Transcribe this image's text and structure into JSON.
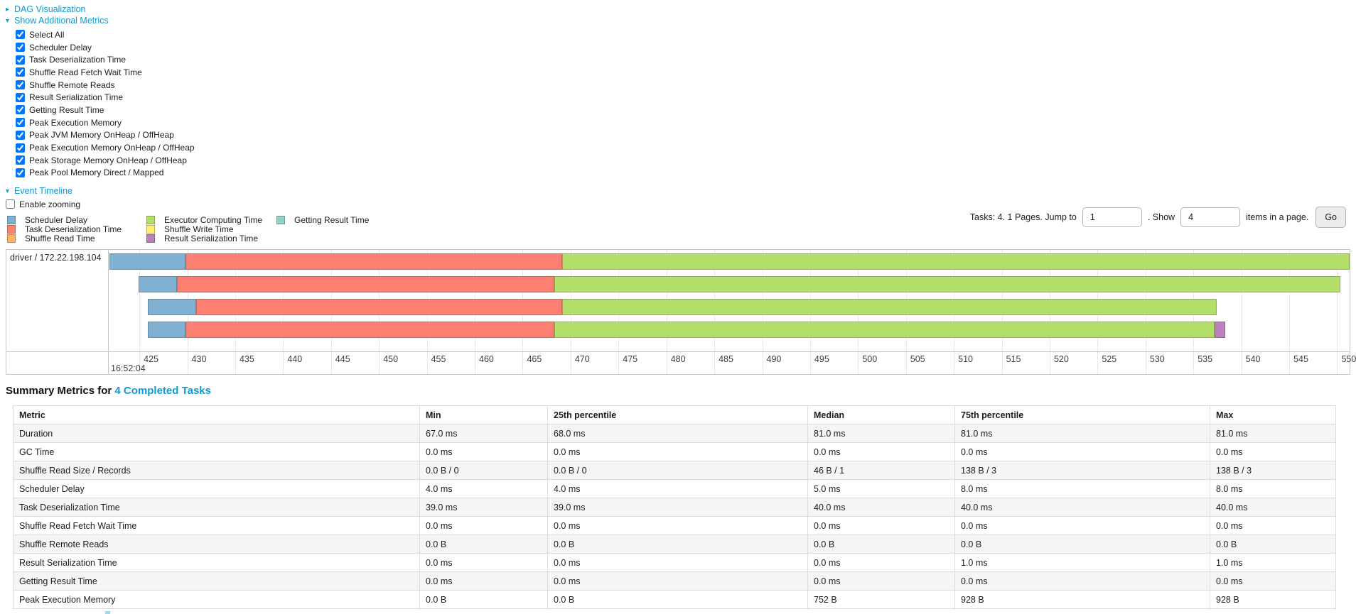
{
  "colors": {
    "link": "#0d9ad6",
    "segment_colors": {
      "scheduler_delay": "#80B1D3",
      "task_deserialization": "#FB8072",
      "shuffle_read": "#FDB462",
      "executor_computing": "#B3DE69",
      "shuffle_write": "#FFED6F",
      "result_serialization": "#BC80BD",
      "getting_result": "#8DD3C7"
    }
  },
  "sections": {
    "dag_arrow": "▸",
    "dag_label": "DAG Visualization",
    "metrics_arrow": "▾",
    "metrics_label": "Show Additional Metrics",
    "timeline_arrow": "▾",
    "timeline_label": "Event Timeline",
    "enable_zooming_label": "Enable zooming"
  },
  "metrics_checkboxes": [
    "Select All",
    "Scheduler Delay",
    "Task Deserialization Time",
    "Shuffle Read Fetch Wait Time",
    "Shuffle Remote Reads",
    "Result Serialization Time",
    "Getting Result Time",
    "Peak Execution Memory",
    "Peak JVM Memory OnHeap / OffHeap",
    "Peak Execution Memory OnHeap / OffHeap",
    "Peak Storage Memory OnHeap / OffHeap",
    "Peak Pool Memory Direct / Mapped"
  ],
  "legend": {
    "columns": [
      [
        {
          "label": "Scheduler Delay",
          "color_key": "scheduler_delay"
        },
        {
          "label": "Task Deserialization Time",
          "color_key": "task_deserialization"
        },
        {
          "label": "Shuffle Read Time",
          "color_key": "shuffle_read"
        }
      ],
      [
        {
          "label": "Executor Computing Time",
          "color_key": "executor_computing"
        },
        {
          "label": "Shuffle Write Time",
          "color_key": "shuffle_write"
        },
        {
          "label": "Result Serialization Time",
          "color_key": "result_serialization"
        }
      ],
      [
        {
          "label": "Getting Result Time",
          "color_key": "getting_result"
        }
      ]
    ]
  },
  "pagination": {
    "prefix": "Tasks: 4. 1 Pages. Jump to",
    "jump_value": "1",
    "mid": ". Show",
    "show_value": "4",
    "suffix": "items in a page.",
    "go_label": "Go"
  },
  "timeline": {
    "executor_label": "driver / 172.22.198.104",
    "axis_start": 425,
    "axis_end": 550,
    "axis_step": 5,
    "axis_time_label": "16:52:04",
    "view_min": 421.8,
    "view_max": 551.3,
    "tasks": [
      {
        "segments": [
          [
            "scheduler_delay",
            421.9,
            429.8
          ],
          [
            "task_deserialization",
            429.8,
            469.1
          ],
          [
            "executor_computing",
            469.1,
            551.3
          ]
        ]
      },
      {
        "segments": [
          [
            "scheduler_delay",
            424.9,
            428.9
          ],
          [
            "task_deserialization",
            428.9,
            468.3
          ],
          [
            "executor_computing",
            468.3,
            550.3
          ]
        ]
      },
      {
        "segments": [
          [
            "scheduler_delay",
            425.9,
            430.9
          ],
          [
            "task_deserialization",
            430.9,
            469.1
          ],
          [
            "executor_computing",
            469.1,
            537.4
          ]
        ]
      },
      {
        "segments": [
          [
            "scheduler_delay",
            425.9,
            429.8
          ],
          [
            "task_deserialization",
            429.8,
            468.3
          ],
          [
            "executor_computing",
            468.3,
            537.2
          ],
          [
            "result_serialization",
            537.2,
            538.3
          ]
        ]
      }
    ]
  },
  "summary": {
    "title_prefix": "Summary Metrics for",
    "title_link": "4 Completed Tasks",
    "headers": [
      "Metric",
      "Min",
      "25th percentile",
      "Median",
      "75th percentile",
      "Max"
    ],
    "rows": [
      [
        "Duration",
        "67.0 ms",
        "68.0 ms",
        "81.0 ms",
        "81.0 ms",
        "81.0 ms"
      ],
      [
        "GC Time",
        "0.0 ms",
        "0.0 ms",
        "0.0 ms",
        "0.0 ms",
        "0.0 ms"
      ],
      [
        "Shuffle Read Size / Records",
        "0.0 B / 0",
        "0.0 B / 0",
        "46 B / 1",
        "138 B / 3",
        "138 B / 3"
      ],
      [
        "Scheduler Delay",
        "4.0 ms",
        "4.0 ms",
        "5.0 ms",
        "8.0 ms",
        "8.0 ms"
      ],
      [
        "Task Deserialization Time",
        "39.0 ms",
        "39.0 ms",
        "40.0 ms",
        "40.0 ms",
        "40.0 ms"
      ],
      [
        "Shuffle Read Fetch Wait Time",
        "0.0 ms",
        "0.0 ms",
        "0.0 ms",
        "0.0 ms",
        "0.0 ms"
      ],
      [
        "Shuffle Remote Reads",
        "0.0 B",
        "0.0 B",
        "0.0 B",
        "0.0 B",
        "0.0 B"
      ],
      [
        "Result Serialization Time",
        "0.0 ms",
        "0.0 ms",
        "0.0 ms",
        "1.0 ms",
        "1.0 ms"
      ],
      [
        "Getting Result Time",
        "0.0 ms",
        "0.0 ms",
        "0.0 ms",
        "0.0 ms",
        "0.0 ms"
      ],
      [
        "Peak Execution Memory",
        "0.0 B",
        "0.0 B",
        "752 B",
        "928 B",
        "928 B"
      ]
    ]
  }
}
